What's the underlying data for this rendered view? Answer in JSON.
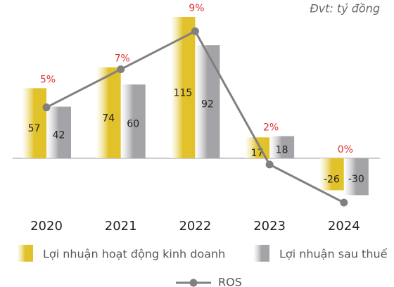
{
  "chart_data": {
    "type": "bar",
    "unit_label": "Đvt: tỷ đồng",
    "categories": [
      "2020",
      "2021",
      "2022",
      "2023",
      "2024"
    ],
    "series": [
      {
        "name": "Lợi nhuận hoạt động kinh doanh",
        "color": "#e2c22a",
        "values": [
          57,
          74,
          115,
          17,
          -26
        ]
      },
      {
        "name": "Lợi nhuận sau thuế",
        "color": "#a4a4a8",
        "values": [
          42,
          60,
          92,
          18,
          -30
        ]
      },
      {
        "name": "ROS",
        "type": "line",
        "axis": "y2",
        "color": "#808080",
        "values": [
          5,
          7,
          9,
          2,
          0
        ],
        "value_labels": [
          "5%",
          "7%",
          "9%",
          "2%",
          "0%"
        ],
        "label_color": "#e03131"
      }
    ],
    "ylim": [
      -50,
      125
    ],
    "y2lim": [
      -0.9,
      10.4
    ]
  }
}
